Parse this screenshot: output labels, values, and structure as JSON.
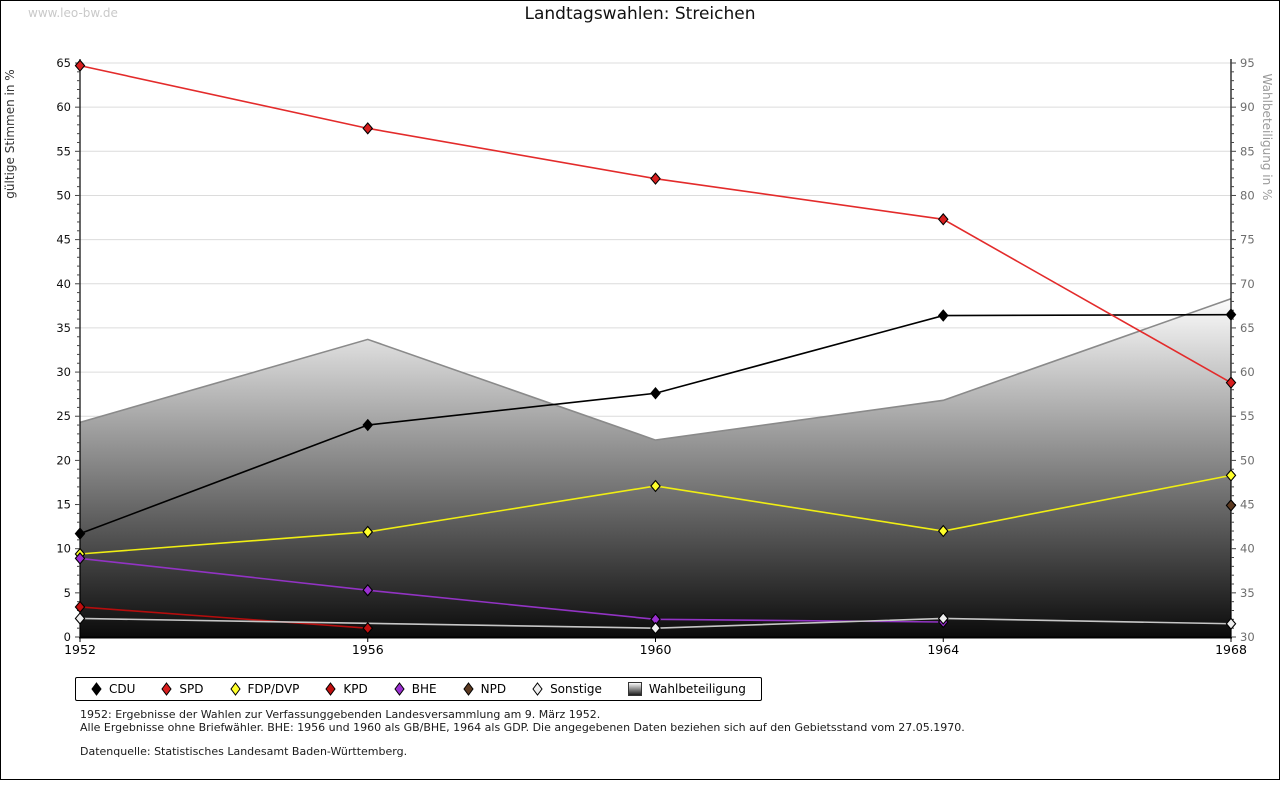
{
  "page": {
    "watermark": "www.leo-bw.de",
    "title": "Landtagswahlen: Streichen",
    "footnote1": "1952: Ergebnisse der Wahlen zur Verfassunggebenden Landesversammlung am 9. März 1952.",
    "footnote2": "Alle Ergebnisse ohne Briefwähler. BHE: 1956 und 1960 als GB/BHE, 1964 als GDP. Die angegebenen Daten beziehen sich auf den Gebietsstand vom 27.05.1970.",
    "source": "Datenquelle: Statistisches Landesamt Baden-Württemberg."
  },
  "chart_data": {
    "type": "line",
    "title": "Landtagswahlen: Streichen",
    "categories": [
      "1952",
      "1956",
      "1960",
      "1964",
      "1968"
    ],
    "axis_left": {
      "label": "gültige Stimmen in %",
      "min": 0,
      "max": 65,
      "tick_step": 5,
      "minor_step": 1
    },
    "axis_right": {
      "label": "Wahlbeteiligung in %",
      "min": 30,
      "max": 95,
      "tick_step": 5,
      "minor_step": 1
    },
    "grid": true,
    "legend_position": "bottom",
    "series": [
      {
        "name": "CDU",
        "axis": "left",
        "line_color": "#000000",
        "marker_color": "#000000",
        "values": [
          11.7,
          24.0,
          27.6,
          36.4,
          36.5
        ]
      },
      {
        "name": "SPD",
        "axis": "left",
        "line_color": "#e32b2b",
        "marker_color": "#d81e1e",
        "values": [
          64.7,
          57.6,
          51.9,
          47.3,
          28.8
        ]
      },
      {
        "name": "FDP/DVP",
        "axis": "left",
        "line_color": "#f0ee13",
        "marker_color": "#ffff2a",
        "values": [
          9.4,
          11.9,
          17.1,
          12.0,
          18.3
        ]
      },
      {
        "name": "KPD",
        "axis": "left",
        "line_color": "#b50d0d",
        "marker_color": "#c00f0f",
        "values": [
          3.4,
          1.0,
          null,
          null,
          null
        ]
      },
      {
        "name": "BHE",
        "axis": "left",
        "line_color": "#9233c4",
        "marker_color": "#9a2fd0",
        "values": [
          8.9,
          5.3,
          2.0,
          1.7,
          null
        ]
      },
      {
        "name": "NPD",
        "axis": "left",
        "line_color": "#5c3a21",
        "marker_color": "#5c3a21",
        "values": [
          null,
          null,
          null,
          null,
          14.9
        ]
      },
      {
        "name": "Sonstige",
        "axis": "left",
        "line_color": "#c6c6c6",
        "marker_color": "#efefef",
        "values": [
          2.1,
          null,
          1.0,
          2.1,
          1.5
        ]
      }
    ],
    "area_series": {
      "name": "Wahlbeteiligung",
      "axis": "right",
      "outline_color": "#8a8a8a",
      "fill": "gradient-white-to-black",
      "values": [
        54.3,
        63.7,
        52.3,
        56.8,
        68.3
      ]
    },
    "legend": [
      "CDU",
      "SPD",
      "FDP/DVP",
      "KPD",
      "BHE",
      "NPD",
      "Sonstige",
      "Wahlbeteiligung"
    ]
  }
}
